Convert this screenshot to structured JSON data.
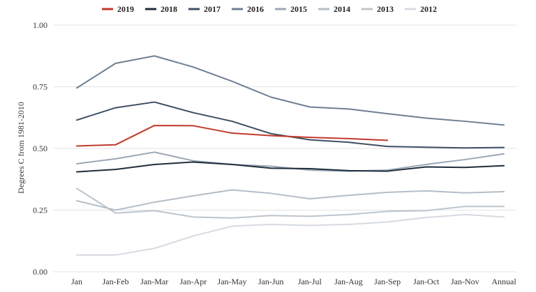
{
  "chart_data": {
    "type": "line",
    "ylabel": "Degrees C from 1981-2010",
    "xlabel": "",
    "title": "",
    "ylim": [
      0,
      1
    ],
    "yticks": [
      "0.00",
      "0.25",
      "0.50",
      "0.75",
      "1.00"
    ],
    "ytick_values": [
      0,
      0.25,
      0.5,
      0.75,
      1.0
    ],
    "grid": "horizontal",
    "legend_position": "top",
    "categories": [
      "Jan",
      "Jan-Feb",
      "Jan-Mar",
      "Jan-Apr",
      "Jan-May",
      "Jan-Jun",
      "Jan-Jul",
      "Jan-Aug",
      "Jan-Sep",
      "Jan-Oct",
      "Jan-Nov",
      "Annual"
    ],
    "series": [
      {
        "name": "2019",
        "color": "#c0392b",
        "values": [
          0.51,
          0.515,
          0.593,
          0.592,
          0.562,
          0.552,
          0.545,
          0.54,
          0.533,
          null,
          null,
          null
        ]
      },
      {
        "name": "2018",
        "color": "#1f2d3d",
        "values": [
          0.405,
          0.415,
          0.435,
          0.445,
          0.435,
          0.42,
          0.418,
          0.41,
          0.408,
          0.425,
          0.423,
          0.43
        ]
      },
      {
        "name": "2017",
        "color": "#3d4f63",
        "values": [
          0.615,
          0.665,
          0.688,
          0.645,
          0.61,
          0.56,
          0.535,
          0.525,
          0.508,
          0.505,
          0.502,
          0.504
        ]
      },
      {
        "name": "2016",
        "color": "#6e7f92",
        "values": [
          0.745,
          0.845,
          0.875,
          0.83,
          0.772,
          0.708,
          0.668,
          0.66,
          0.641,
          0.623,
          0.61,
          0.595
        ]
      },
      {
        "name": "2015",
        "color": "#9aa7b5",
        "values": [
          0.438,
          0.458,
          0.485,
          0.45,
          0.435,
          0.428,
          0.412,
          0.408,
          0.412,
          0.435,
          0.455,
          0.478
        ]
      },
      {
        "name": "2014",
        "color": "#b3bdc7",
        "values": [
          0.288,
          0.25,
          0.282,
          0.308,
          0.332,
          0.318,
          0.296,
          0.31,
          0.322,
          0.328,
          0.32,
          0.325
        ]
      },
      {
        "name": "2013",
        "color": "#bcc5ce",
        "values": [
          0.338,
          0.238,
          0.248,
          0.222,
          0.218,
          0.228,
          0.225,
          0.232,
          0.245,
          0.248,
          0.265,
          0.265
        ]
      },
      {
        "name": "2012",
        "color": "#d5dbe1",
        "values": [
          0.068,
          0.068,
          0.095,
          0.145,
          0.185,
          0.192,
          0.188,
          0.192,
          0.202,
          0.22,
          0.232,
          0.222
        ]
      }
    ]
  }
}
